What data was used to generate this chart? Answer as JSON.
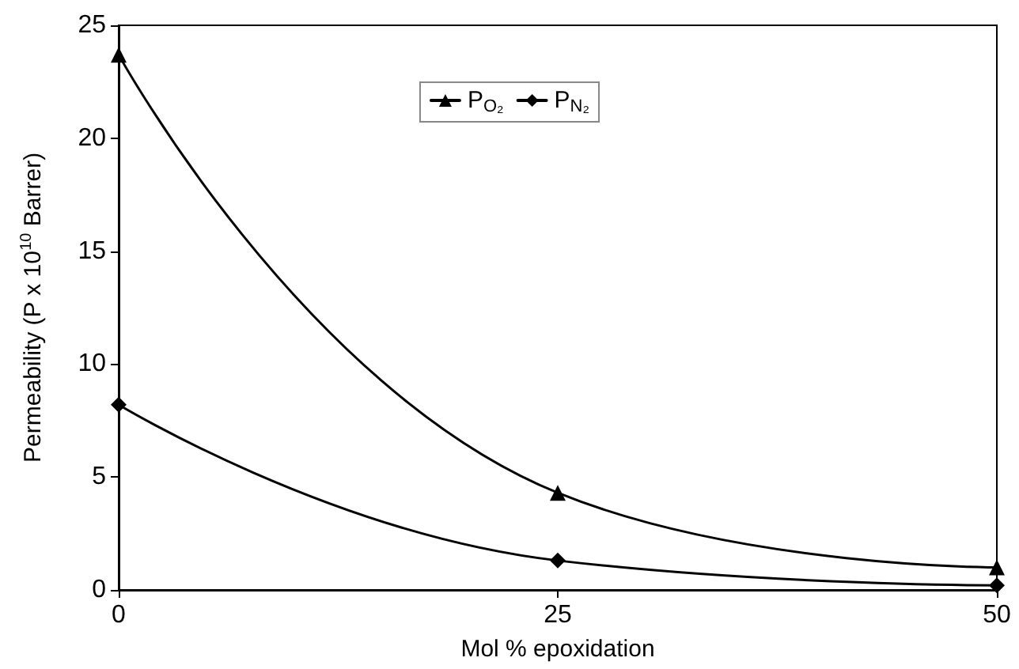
{
  "chart_data": {
    "type": "line",
    "xlabel": "Mol % epoxidation",
    "ylabel": "Permeability (P x 10$^{10}$ Barrer)",
    "x": [
      0,
      25,
      50
    ],
    "series": [
      {
        "name": "P$_{O₂}$",
        "color": "#000000",
        "marker": "triangle",
        "values": [
          23.7,
          4.3,
          1.0
        ]
      },
      {
        "name": "P$_{N₂}$",
        "color": "#000000",
        "marker": "diamond",
        "values": [
          8.2,
          1.3,
          0.2
        ]
      }
    ],
    "xlim": [
      0,
      50
    ],
    "xticks": [
      0,
      25,
      50
    ],
    "ylim": [
      0,
      25
    ],
    "yticks": [
      0,
      5,
      10,
      15,
      20,
      25
    ],
    "grid": false,
    "legend": "top",
    "line_style": "solid"
  }
}
